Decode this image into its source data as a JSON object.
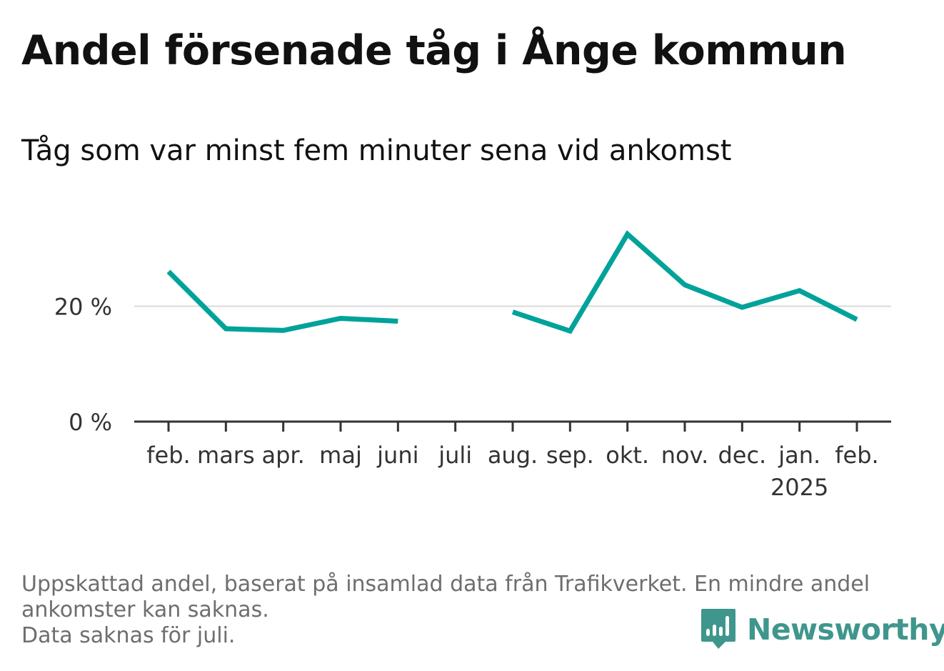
{
  "title": "Andel försenade tåg i Ånge kommun",
  "subtitle": "Tåg som var minst fem minuter sena vid ankomst",
  "footnote": {
    "line1": "Uppskattad andel, baserat på insamlad data från Trafikverket. En mindre andel",
    "line2": "ankomster kan saknas.",
    "line3": "Data saknas för juli."
  },
  "brand": {
    "name": "Newsworthy",
    "icon": "bar-chart-speech-bubble-icon",
    "color": "#3f968c"
  },
  "chart_data": {
    "type": "line",
    "title": "Andel försenade tåg i Ånge kommun",
    "subtitle": "Tåg som var minst fem minuter sena vid ankomst",
    "categories": [
      "feb.",
      "mars",
      "apr.",
      "maj",
      "juni",
      "juli",
      "aug.",
      "sep.",
      "okt.",
      "nov.",
      "dec.",
      "jan.",
      "feb."
    ],
    "x_sublabels": [
      "",
      "",
      "",
      "",
      "",
      "",
      "",
      "",
      "",
      "",
      "",
      "2025",
      ""
    ],
    "series": [
      {
        "color": "#00a29a",
        "values": [
          26,
          16.1,
          15.8,
          17.9,
          17.4,
          null,
          19,
          15.7,
          32.5,
          23.7,
          19.8,
          22.7,
          17.7
        ]
      }
    ],
    "y_ticks": [
      0,
      20
    ],
    "y_tick_labels": [
      "0 %",
      "20 %"
    ],
    "ylim": [
      0,
      40
    ],
    "grid": true,
    "colors": {
      "line": "#00a29a",
      "grid": "#d9d9d9",
      "axis": "#333333",
      "tick_label": "#333333"
    }
  }
}
